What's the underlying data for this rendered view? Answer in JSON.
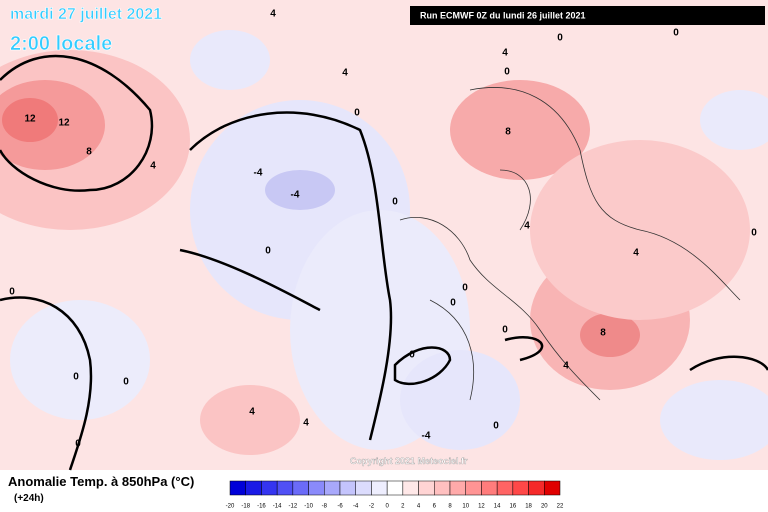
{
  "header": {
    "date": "mardi 27 juillet 2021",
    "time": "2:00 locale",
    "run": "Run ECMWF 0Z du lundi 26 juillet 2021"
  },
  "contour_labels": [
    "12",
    "12",
    "8",
    "4",
    "4",
    "4",
    "0",
    "-4",
    "-4",
    "0",
    "0",
    "0",
    "0",
    "0",
    "4",
    "4",
    "0",
    "-4",
    "0",
    "0",
    "0",
    "0",
    "0",
    "8",
    "4",
    "0",
    "0",
    "0",
    "4",
    "4",
    "0",
    "8",
    "4"
  ],
  "copyright": "Copyright 2021 Meteociel.fr",
  "legend": {
    "title": "Anomalie Temp. à 850hPa (°C)",
    "step": "(+24h)",
    "labels": [
      "-20",
      "-18",
      "-16",
      "-14",
      "-12",
      "-10",
      "-8",
      "-6",
      "-4",
      "-2",
      "0",
      "2",
      "4",
      "6",
      "8",
      "10",
      "12",
      "14",
      "16",
      "18",
      "20",
      "22"
    ],
    "colors": [
      "#0000d8",
      "#1a1ae6",
      "#3535f0",
      "#5050f5",
      "#6b6bf8",
      "#8a8afa",
      "#a8a8fb",
      "#c4c4fc",
      "#dcdcfd",
      "#eeeefe",
      "#ffffff",
      "#ffe8e8",
      "#ffd4d4",
      "#ffc0c0",
      "#ffaaaa",
      "#ff9494",
      "#ff7c7c",
      "#ff6464",
      "#ff4848",
      "#f52a2a",
      "#e00000"
    ]
  }
}
